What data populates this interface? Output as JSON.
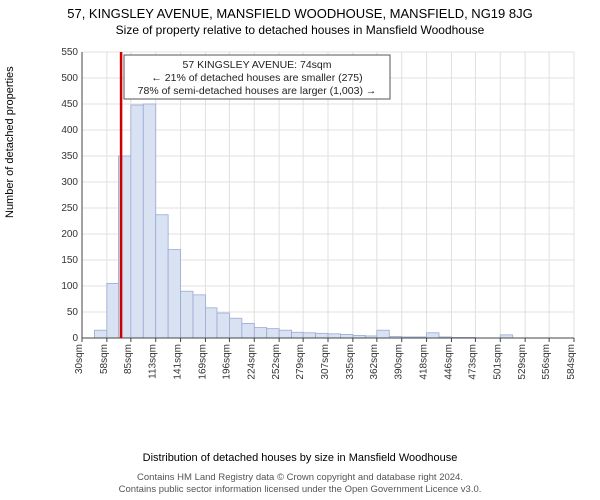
{
  "title": "57, KINGSLEY AVENUE, MANSFIELD WOODHOUSE, MANSFIELD, NG19 8JG",
  "subtitle": "Size of property relative to detached houses in Mansfield Woodhouse",
  "chart": {
    "type": "histogram",
    "y_label": "Number of detached properties",
    "x_label": "Distribution of detached houses by size in Mansfield Woodhouse",
    "ylim": [
      0,
      550
    ],
    "ytick_step": 50,
    "yticks": [
      0,
      50,
      100,
      150,
      200,
      250,
      300,
      350,
      400,
      450,
      500,
      550
    ],
    "x_tick_labels": [
      "30sqm",
      "58sqm",
      "85sqm",
      "113sqm",
      "141sqm",
      "169sqm",
      "196sqm",
      "224sqm",
      "252sqm",
      "279sqm",
      "307sqm",
      "335sqm",
      "362sqm",
      "390sqm",
      "418sqm",
      "446sqm",
      "473sqm",
      "501sqm",
      "529sqm",
      "556sqm",
      "584sqm"
    ],
    "category_starts": [
      30,
      58,
      85,
      113,
      141,
      169,
      196,
      224,
      252,
      279,
      307,
      335,
      362,
      390,
      418,
      446,
      473,
      501,
      529,
      556,
      584
    ],
    "bar_bin_starts": [
      30,
      44,
      58,
      71,
      85,
      99,
      113,
      127,
      141,
      155,
      169,
      182,
      196,
      210,
      224,
      238,
      252,
      266,
      279,
      293,
      307,
      321,
      335,
      349,
      362,
      376,
      390,
      404,
      418,
      432,
      446,
      460,
      473,
      487,
      501,
      515,
      529,
      543,
      556,
      570,
      584
    ],
    "bar_values": [
      0,
      15,
      105,
      350,
      448,
      450,
      237,
      170,
      90,
      83,
      58,
      48,
      38,
      28,
      20,
      18,
      15,
      11,
      10,
      9,
      8,
      7,
      5,
      4,
      15,
      3,
      2,
      2,
      10,
      2,
      1,
      1,
      0,
      0,
      6,
      0,
      0,
      0,
      0,
      0,
      0
    ],
    "bar_color": "#d9e2f3",
    "bar_border_color": "#9aa9d4",
    "grid_color": "#e0e0e0",
    "axis_color": "#444444",
    "background": "#ffffff",
    "marker_x": 74,
    "marker_color": "#cc0000",
    "annotation": {
      "line1": "57 KINGSLEY AVENUE: 74sqm",
      "line2": "← 21% of detached houses are smaller (275)",
      "line3": "78% of semi-detached houses are larger (1,003) →"
    }
  },
  "footer": {
    "line1": "Contains HM Land Registry data © Crown copyright and database right 2024.",
    "line2": "Contains public sector information licensed under the Open Government Licence v3.0."
  }
}
